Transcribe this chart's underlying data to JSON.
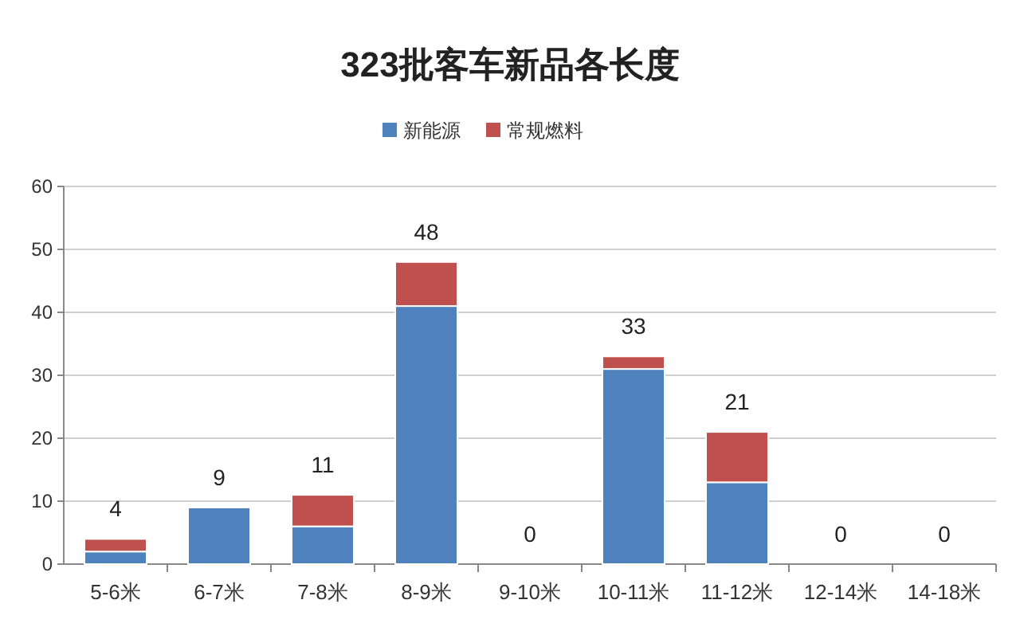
{
  "chart_data": {
    "type": "bar",
    "title": "323批客车新品各长度",
    "stacked": true,
    "categories": [
      "5-6米",
      "6-7米",
      "7-8米",
      "8-9米",
      "9-10米",
      "10-11米",
      "11-12米",
      "12-14米",
      "14-18米"
    ],
    "series": [
      {
        "name": "新能源",
        "color": "#4f81bd",
        "values": [
          2,
          9,
          6,
          41,
          0,
          31,
          13,
          0,
          0
        ]
      },
      {
        "name": "常规燃料",
        "color": "#c0504d",
        "values": [
          2,
          0,
          5,
          7,
          0,
          2,
          8,
          0,
          0
        ]
      }
    ],
    "totals": [
      "4",
      "9",
      "11",
      "48",
      "0",
      "33",
      "21",
      "0",
      "0"
    ],
    "ylim": [
      0,
      60
    ],
    "yticks": [
      0,
      10,
      20,
      30,
      40,
      50,
      60
    ],
    "grid": "y",
    "legend": "top"
  }
}
